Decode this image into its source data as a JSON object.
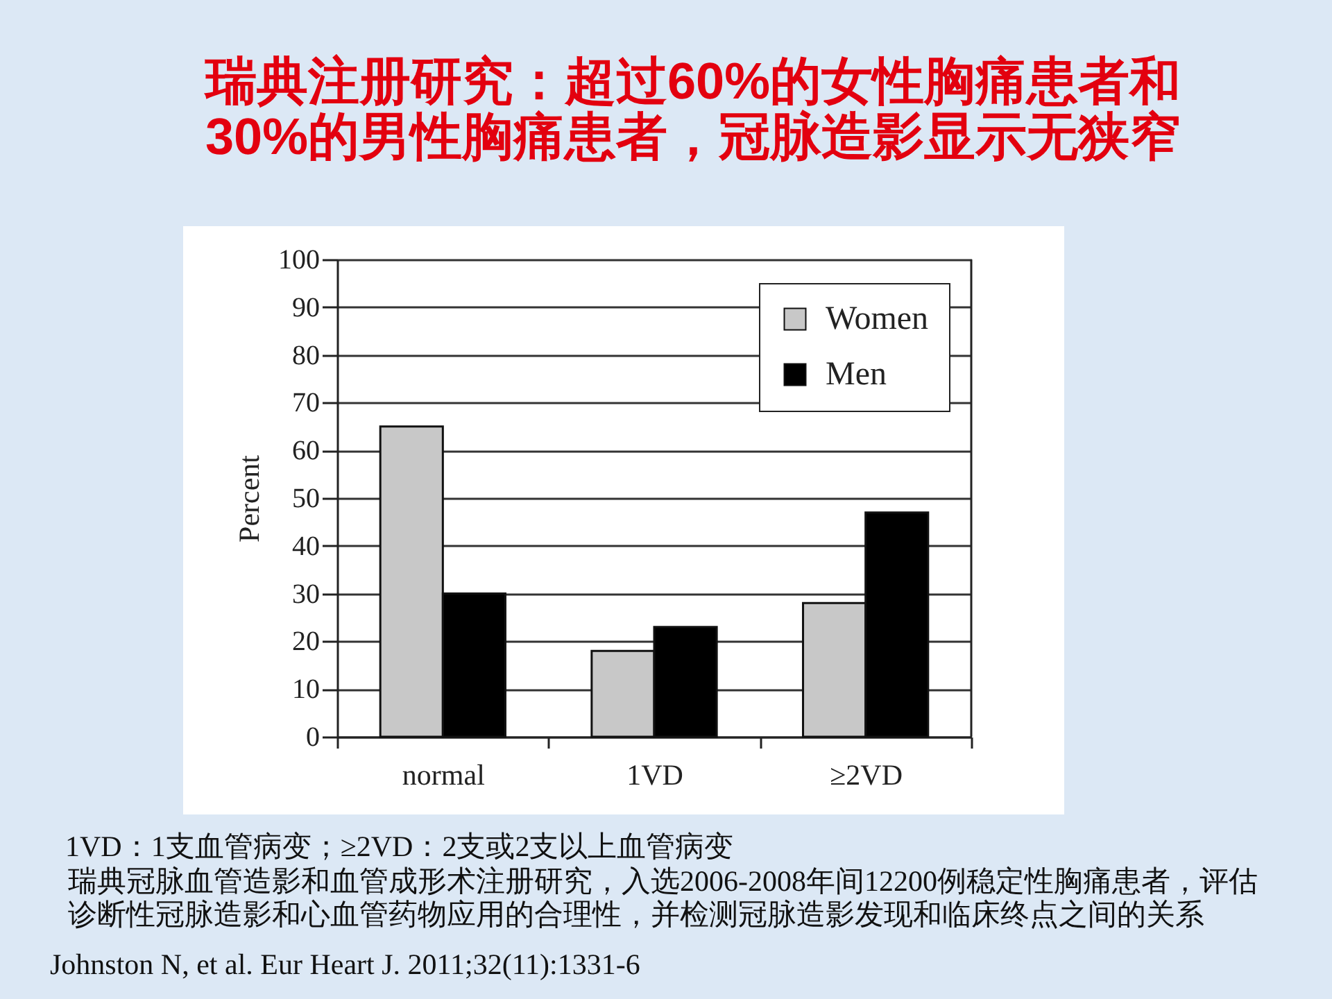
{
  "chart_data": {
    "type": "bar",
    "title": "瑞典注册研究：超过60%的女性胸痛患者和\n30%的男性胸痛患者，冠脉造影显示无狭窄",
    "ylabel": "Percent",
    "categories": [
      "normal",
      "1VD",
      "≥2VD"
    ],
    "series": [
      {
        "name": "Women",
        "color": "#c8c8c8",
        "values": [
          65,
          18,
          28
        ]
      },
      {
        "name": "Men",
        "color": "#000000",
        "values": [
          30,
          23,
          47
        ]
      }
    ],
    "ylim": [
      0,
      100
    ],
    "yticks": [
      0,
      10,
      20,
      30,
      40,
      50,
      60,
      70,
      80,
      90,
      100
    ],
    "grid": "y",
    "legend": "top right",
    "annotations": [
      "1VD：1支血管病变；≥2VD：2支或2支以上血管病变",
      "瑞典冠脉血管造影和血管成形术注册研究，入选2006-2008年间12200例稳定性胸痛患者，评估",
      "诊断性冠脉造影和心血管药物应用的合理性，并检测冠脉造影发现和临床终点之间的关系",
      "Johnston N, et al. Eur Heart J. 2011;32(11):1331-6"
    ]
  }
}
